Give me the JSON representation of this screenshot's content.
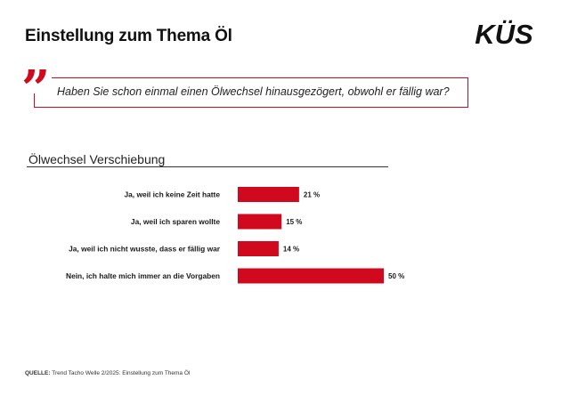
{
  "header": {
    "title": "Einstellung zum Thema Öl",
    "logo_text": "KÜS"
  },
  "question": {
    "quote_icon": "quotation-mark-icon",
    "text": "Haben Sie schon einmal einen Ölwechsel hinausgezögert, obwohl er fällig war?"
  },
  "colors": {
    "accent": "#d0091f",
    "text": "#1a1a1a"
  },
  "chart_data": {
    "type": "bar",
    "orientation": "horizontal",
    "title": "Ölwechsel Verschiebung",
    "categories": [
      "Ja, weil ich keine Zeit hatte",
      "Ja, weil ich sparen wollte",
      "Ja, weil ich nicht wusste, dass er fällig war",
      "Nein, ich halte mich immer an die Vorgaben"
    ],
    "values": [
      21,
      15,
      14,
      50
    ],
    "value_labels": [
      "21 %",
      "15 %",
      "14 %",
      "50 %"
    ],
    "unit": "%",
    "xlim": [
      0,
      100
    ],
    "grid": false,
    "legend": "none"
  },
  "source": {
    "label": "QUELLE:",
    "text": "Trend Tacho Welle 2/2025: Einstellung zum Thema Öl"
  }
}
